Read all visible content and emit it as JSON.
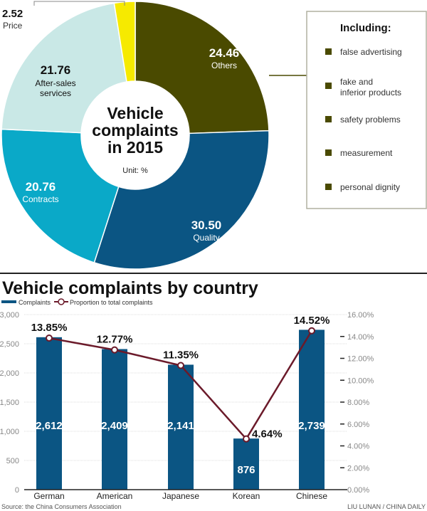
{
  "chart_data": [
    {
      "type": "pie",
      "title": "Vehicle complaints in 2015",
      "unit": "Unit: %",
      "slices": [
        {
          "label": "Others",
          "value": 24.46,
          "color": "#4a4a00"
        },
        {
          "label": "Quality",
          "value": 30.5,
          "color": "#0b5583"
        },
        {
          "label": "Contracts",
          "value": 20.76,
          "color": "#0aa9c8"
        },
        {
          "label": "After-sales services",
          "value": 21.76,
          "color": "#c9e8e6"
        },
        {
          "label": "Price",
          "value": 2.52,
          "color": "#f6ea00"
        }
      ],
      "value_labels": [
        "24.46",
        "30.50",
        "20.76",
        "21.76",
        "2.52"
      ],
      "legend": {
        "title": "Including:",
        "items": [
          "false advertising",
          "fake and inferior products",
          "safety problems",
          "measurement",
          "personal dignity"
        ]
      }
    },
    {
      "type": "bar",
      "title": "Vehicle complaints by country",
      "categories": [
        "German",
        "American",
        "Japanese",
        "Korean",
        "Chinese"
      ],
      "series": [
        {
          "name": "Complaints",
          "values": [
            2612,
            2409,
            2141,
            876,
            2739
          ],
          "labels": [
            "2,612",
            "2,409",
            "2,141",
            "876",
            "2,739"
          ],
          "color": "#0b5583"
        },
        {
          "name": "Proportion to total complaints",
          "values": [
            13.85,
            12.77,
            11.35,
            4.64,
            14.52
          ],
          "labels": [
            "13.85%",
            "12.77%",
            "11.35%",
            "4.64%",
            "14.52%"
          ],
          "color": "#6b1a2a",
          "axis": "right"
        }
      ],
      "ylim": [
        0,
        3000
      ],
      "yticks": [
        "0",
        "500",
        "1,000",
        "1,500",
        "2,000",
        "2,500",
        "3,000"
      ],
      "y2lim": [
        0,
        16
      ],
      "y2ticks": [
        "0.00%",
        "2.00%",
        "4.00%",
        "6.00%",
        "8.00%",
        "10.00%",
        "12.00%",
        "14.00%",
        "16.00%"
      ],
      "grid": true,
      "legend": "top-left"
    }
  ],
  "source": "Source: the China Consumers Association",
  "credit": "LIU LUNAN / CHINA DAILY"
}
